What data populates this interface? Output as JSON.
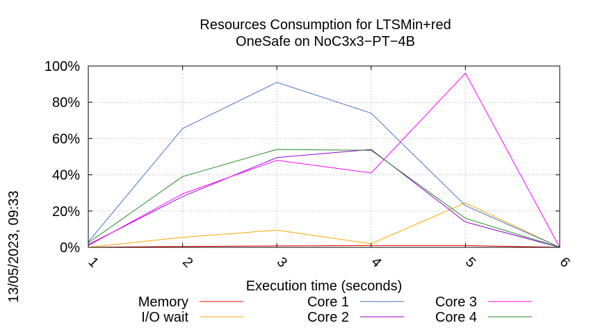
{
  "chart_data": {
    "type": "line",
    "title_lines": [
      "Resources Consumption for LTSMin+red",
      "OneSafe on NoC3x3−PT−4B"
    ],
    "xlabel": "Execution time (seconds)",
    "ylabel": "",
    "side_label": "13/05/2023, 09:33",
    "x": [
      1,
      2,
      3,
      4,
      5,
      6
    ],
    "x_tick_labels": [
      "1",
      "2",
      "3",
      "4",
      "5",
      "6"
    ],
    "xlim": [
      1,
      6
    ],
    "ylim": [
      0,
      100
    ],
    "y_tick_labels": [
      "0%",
      "20%",
      "40%",
      "60%",
      "80%",
      "100%"
    ],
    "y_ticks": [
      0,
      20,
      40,
      60,
      80,
      100
    ],
    "grid": true,
    "legend_position": "bottom",
    "series": [
      {
        "name": "Memory",
        "color": "#ff0000",
        "values": [
          0,
          0.5,
          0.8,
          1,
          1,
          0
        ]
      },
      {
        "name": "I/O wait",
        "color": "#ffa500",
        "values": [
          0,
          5.5,
          9.5,
          2,
          24.5,
          0
        ]
      },
      {
        "name": "Core 1",
        "color": "#4472c4",
        "values": [
          3,
          65.5,
          91,
          74,
          23,
          0
        ]
      },
      {
        "name": "Core 2",
        "color": "#9400d3",
        "values": [
          1.5,
          28,
          49.5,
          54,
          14,
          0
        ]
      },
      {
        "name": "Core 3",
        "color": "#ff00ff",
        "values": [
          1,
          29.5,
          48,
          41,
          96,
          0
        ]
      },
      {
        "name": "Core 4",
        "color": "#228b22",
        "values": [
          2.5,
          39,
          54,
          53.5,
          16,
          0
        ]
      }
    ]
  }
}
